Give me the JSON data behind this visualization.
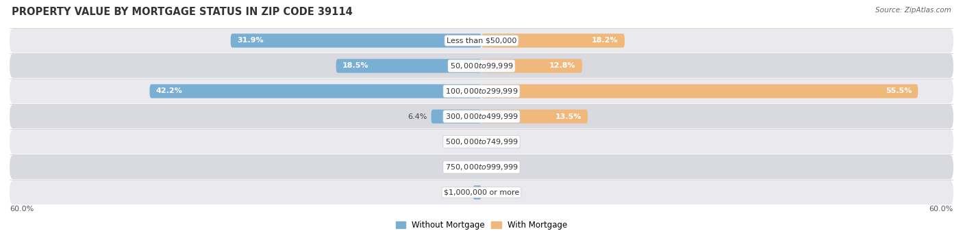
{
  "title": "PROPERTY VALUE BY MORTGAGE STATUS IN ZIP CODE 39114",
  "source": "Source: ZipAtlas.com",
  "categories": [
    "Less than $50,000",
    "$50,000 to $99,999",
    "$100,000 to $299,999",
    "$300,000 to $499,999",
    "$500,000 to $749,999",
    "$750,000 to $999,999",
    "$1,000,000 or more"
  ],
  "without_mortgage": [
    31.9,
    18.5,
    42.2,
    6.4,
    0.0,
    0.0,
    1.1
  ],
  "with_mortgage": [
    18.2,
    12.8,
    55.5,
    13.5,
    0.0,
    0.0,
    0.0
  ],
  "without_mortgage_color": "#7aafd4",
  "with_mortgage_color": "#f0b87a",
  "row_bg_colors": [
    "#e9e9ee",
    "#d9d9e0"
  ],
  "xlim": 60.0,
  "axis_label_left": "60.0%",
  "axis_label_right": "60.0%",
  "legend_labels": [
    "Without Mortgage",
    "With Mortgage"
  ],
  "title_fontsize": 10.5,
  "source_fontsize": 7.5,
  "bar_height": 0.55,
  "label_fontsize": 8,
  "cat_label_fontsize": 8,
  "inside_threshold": 8.0,
  "min_bar_for_label": 3.0
}
